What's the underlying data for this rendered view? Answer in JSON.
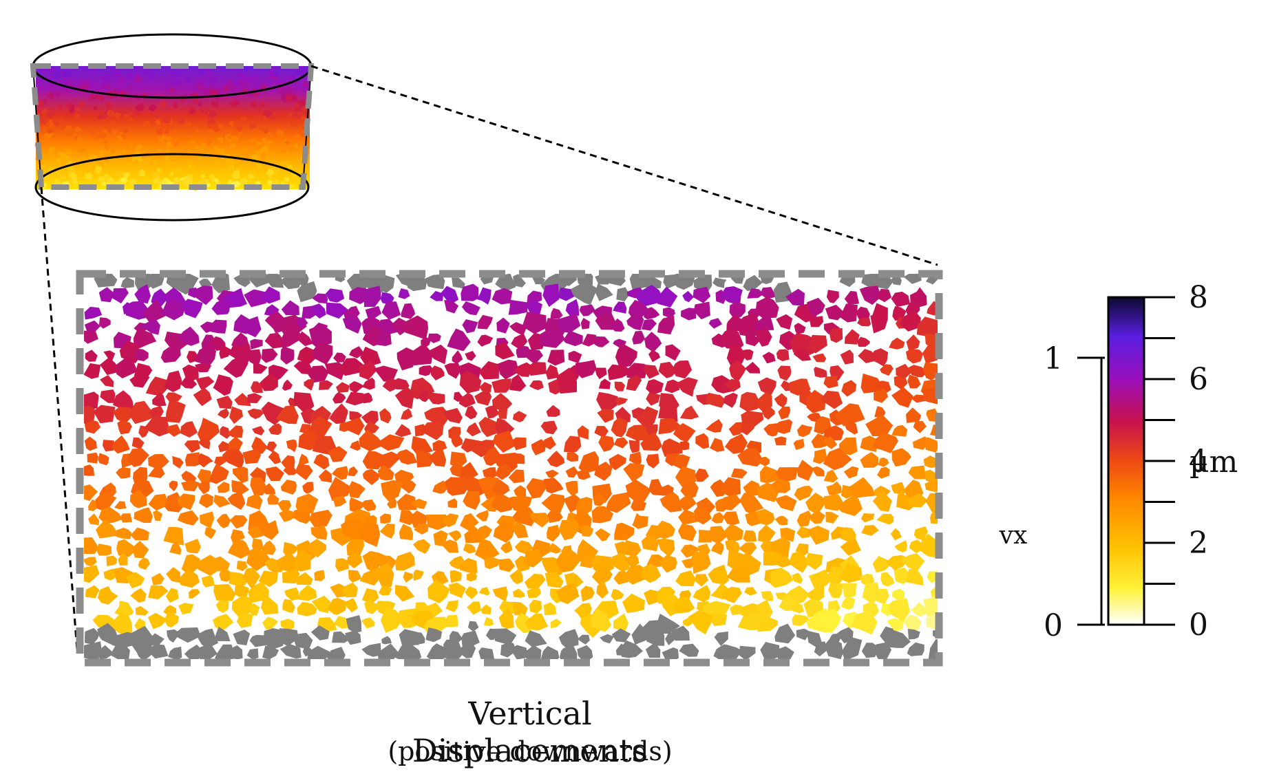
{
  "caption": {
    "title": "Vertical Displacements",
    "subtitle": "(positive downwards)"
  },
  "scale_bar": {
    "label": "vx",
    "ticks": [
      "0",
      "1"
    ]
  },
  "colorbar": {
    "unit": "µm",
    "min": 0,
    "max": 8,
    "labeled_ticks": [
      "0",
      "2",
      "4",
      "6",
      "8"
    ],
    "minor_tick_values": [
      1,
      3,
      5,
      7
    ],
    "colors": [
      "#ffffff",
      "#fff23a",
      "#ffc000",
      "#ff8a00",
      "#ee4a12",
      "#c8124d",
      "#9a0fbc",
      "#5a1ee0",
      "#0a0a30"
    ]
  },
  "fixed_particle_color": "#7f7f7f",
  "dashed_outline_color": "#8c8c8c"
}
